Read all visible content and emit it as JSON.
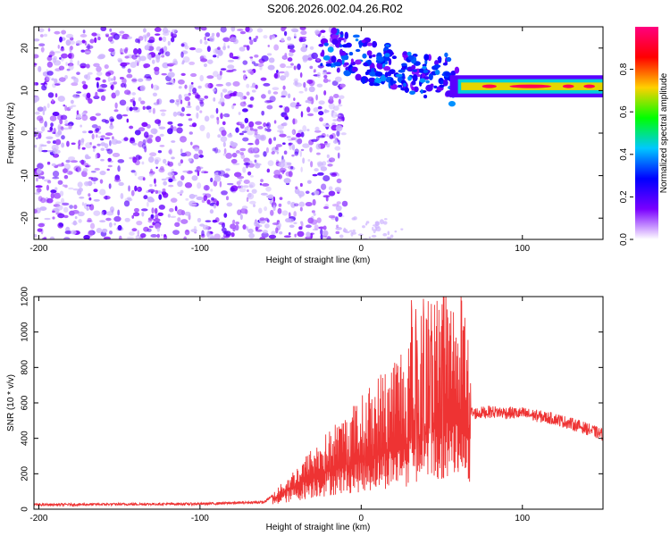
{
  "title": "S206.2026.002.04.26.R02",
  "chart_data": [
    {
      "type": "heatmap",
      "xlabel": "Height of straight line (km)",
      "ylabel": "Frequency (Hz)",
      "xlim": [
        -203,
        150
      ],
      "ylim": [
        -25,
        25
      ],
      "xticks": [
        -200,
        -100,
        0,
        100
      ],
      "yticks": [
        -20,
        -10,
        0,
        10,
        20
      ],
      "colorbar": {
        "label": "Normalized spectral amplitude",
        "range": [
          0,
          1
        ],
        "ticks": [
          "0.0",
          "0.2",
          "0.4",
          "0.6",
          "0.8"
        ],
        "colormap": [
          "#ffffff",
          "#7a00ff",
          "#0000ff",
          "#00c8ff",
          "#00ff00",
          "#ffd000",
          "#ff0000",
          "#ff007f"
        ]
      },
      "features": [
        {
          "name": "broadband noise",
          "x_range": [
            -203,
            -25
          ],
          "y_range": [
            -25,
            25
          ],
          "amplitude": 0.1
        },
        {
          "name": "transition cluster",
          "x_range": [
            -25,
            60
          ],
          "y_range": [
            8,
            25
          ],
          "amplitude": 0.35
        },
        {
          "name": "narrowband line",
          "x_range": [
            60,
            150
          ],
          "frequency": 11,
          "amplitude": 0.95
        }
      ]
    },
    {
      "type": "line",
      "xlabel": "Height of straight line (km)",
      "ylabel": "SNR (10 * v/v)",
      "xlim": [
        -203,
        150
      ],
      "ylim": [
        0,
        1200
      ],
      "xticks": [
        -200,
        -100,
        0,
        100
      ],
      "yticks": [
        0,
        200,
        400,
        600,
        800,
        1000,
        1200
      ],
      "color": "#ee3333",
      "series": [
        {
          "x": [
            -203,
            -150,
            -100,
            -60,
            -45,
            -30,
            -15,
            0,
            15,
            30,
            40,
            50,
            55,
            60,
            65,
            70,
            80,
            100,
            120,
            135,
            150
          ],
          "y": [
            25,
            28,
            30,
            40,
            150,
            250,
            320,
            380,
            450,
            520,
            600,
            650,
            680,
            640,
            560,
            540,
            550,
            540,
            510,
            470,
            420
          ]
        }
      ]
    }
  ]
}
